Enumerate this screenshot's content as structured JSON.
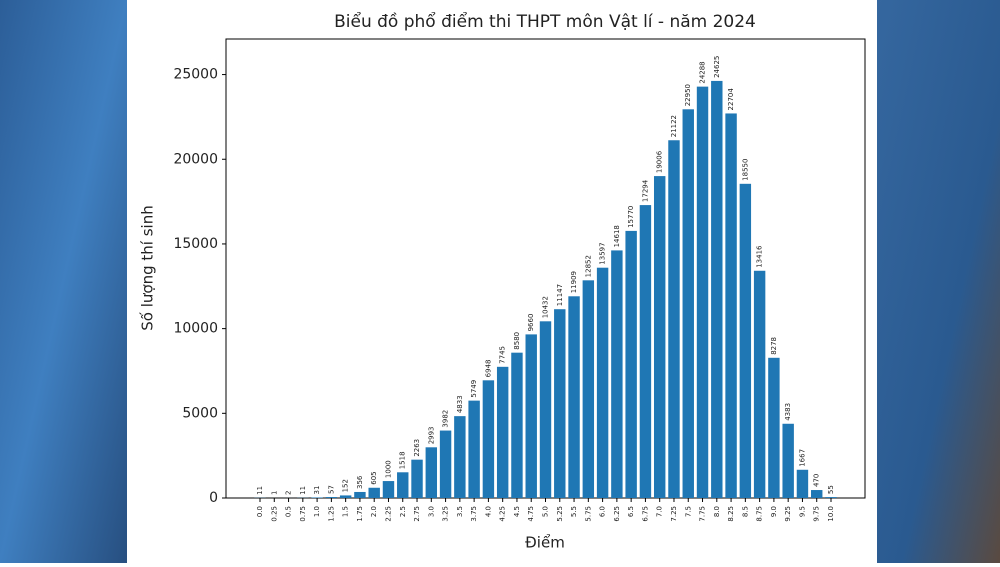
{
  "chart_data": {
    "type": "bar",
    "title": "Biểu đồ phổ điểm thi THPT môn Vật lí - năm 2024",
    "x_label": "Điểm",
    "y_label": "Số lượng thí sinh",
    "categories": [
      "0.0",
      "0.25",
      "0.5",
      "0.75",
      "1.0",
      "1.25",
      "1.5",
      "1.75",
      "2.0",
      "2.25",
      "2.5",
      "2.75",
      "3.0",
      "3.25",
      "3.5",
      "3.75",
      "4.0",
      "4.25",
      "4.5",
      "4.75",
      "5.0",
      "5.25",
      "5.5",
      "5.75",
      "6.0",
      "6.25",
      "6.5",
      "6.75",
      "7.0",
      "7.25",
      "7.5",
      "7.75",
      "8.0",
      "8.25",
      "8.5",
      "8.75",
      "9.0",
      "9.25",
      "9.5",
      "9.75",
      "10.0"
    ],
    "values": [
      11,
      1,
      2,
      11,
      31,
      57,
      152,
      356,
      605,
      1000,
      1518,
      2263,
      2993,
      3982,
      4833,
      5749,
      6948,
      7745,
      8580,
      9660,
      10432,
      11147,
      11909,
      12852,
      13597,
      14618,
      15770,
      17294,
      19006,
      21122,
      22950,
      24288,
      24625,
      22704,
      18550,
      13416,
      8278,
      4383,
      1667,
      470,
      55
    ],
    "color": "#1f77b4",
    "ylim": [
      0,
      27100
    ],
    "yticks": [
      0,
      5000,
      10000,
      15000,
      20000,
      25000
    ]
  }
}
